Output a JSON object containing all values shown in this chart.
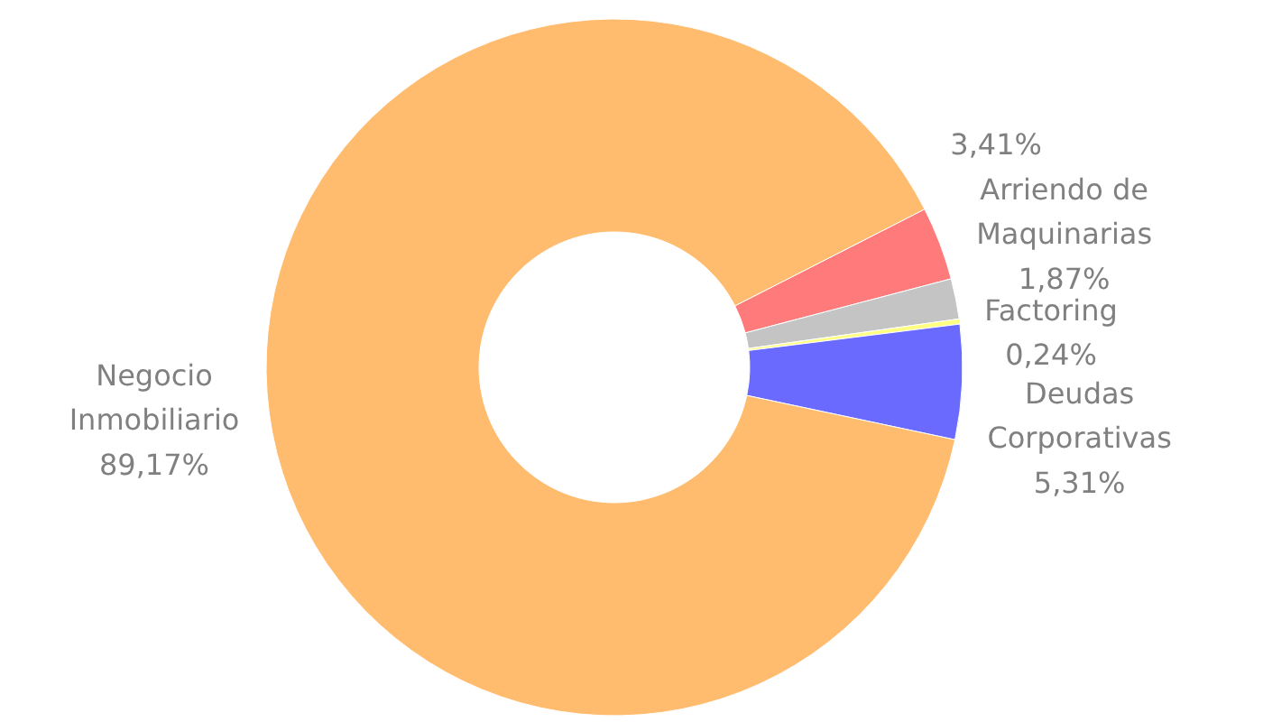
{
  "chart_data": {
    "type": "donut",
    "categories": [
      null,
      "Arriendo de\nMaquinarias",
      "Factoring",
      "Deudas\nCorporativas",
      "Negocio\nInmobiliario"
    ],
    "values": [
      3.41,
      1.87,
      0.24,
      5.31,
      89.17
    ],
    "value_labels": [
      "3,41%",
      "1,87%",
      "0,24%",
      "5,31%",
      "89,17%"
    ],
    "colors": [
      "#ff7a7a",
      "#c4c4c4",
      "#ffff80",
      "#6a6aff",
      "#ffbb6e"
    ]
  }
}
